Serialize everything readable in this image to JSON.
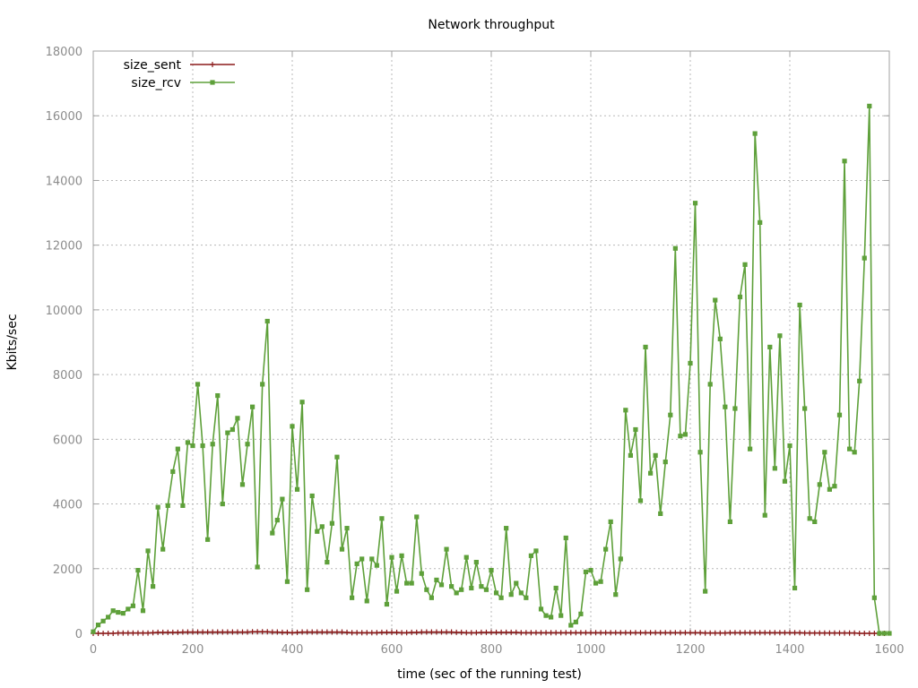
{
  "chart_data": {
    "type": "line",
    "title": "Network throughput",
    "xlabel": "time (sec of the running test)",
    "ylabel": "Kbits/sec",
    "xlim": [
      0,
      1600
    ],
    "ylim": [
      0,
      18000
    ],
    "x_ticks": [
      0,
      200,
      400,
      600,
      800,
      1000,
      1200,
      1400,
      1600
    ],
    "y_ticks": [
      0,
      2000,
      4000,
      6000,
      8000,
      10000,
      12000,
      14000,
      16000,
      18000
    ],
    "grid": true,
    "legend_position": "top-left",
    "series": [
      {
        "name": "size_sent",
        "color": "#8b1a1a",
        "marker": "plus",
        "points": [
          [
            0,
            0
          ],
          [
            10,
            0
          ],
          [
            20,
            0
          ],
          [
            30,
            0
          ],
          [
            40,
            0
          ],
          [
            50,
            10
          ],
          [
            60,
            10
          ],
          [
            70,
            10
          ],
          [
            80,
            10
          ],
          [
            90,
            10
          ],
          [
            100,
            10
          ],
          [
            110,
            10
          ],
          [
            120,
            20
          ],
          [
            130,
            30
          ],
          [
            140,
            30
          ],
          [
            150,
            30
          ],
          [
            160,
            30
          ],
          [
            170,
            30
          ],
          [
            180,
            40
          ],
          [
            190,
            40
          ],
          [
            200,
            40
          ],
          [
            210,
            40
          ],
          [
            220,
            40
          ],
          [
            230,
            40
          ],
          [
            240,
            40
          ],
          [
            250,
            40
          ],
          [
            260,
            40
          ],
          [
            270,
            40
          ],
          [
            280,
            40
          ],
          [
            290,
            40
          ],
          [
            300,
            40
          ],
          [
            310,
            40
          ],
          [
            320,
            50
          ],
          [
            330,
            50
          ],
          [
            340,
            50
          ],
          [
            350,
            50
          ],
          [
            360,
            40
          ],
          [
            370,
            40
          ],
          [
            380,
            30
          ],
          [
            390,
            30
          ],
          [
            400,
            20
          ],
          [
            410,
            30
          ],
          [
            420,
            40
          ],
          [
            430,
            40
          ],
          [
            440,
            40
          ],
          [
            450,
            40
          ],
          [
            460,
            40
          ],
          [
            470,
            40
          ],
          [
            480,
            40
          ],
          [
            490,
            40
          ],
          [
            500,
            40
          ],
          [
            510,
            30
          ],
          [
            520,
            20
          ],
          [
            530,
            20
          ],
          [
            540,
            20
          ],
          [
            550,
            20
          ],
          [
            560,
            20
          ],
          [
            570,
            20
          ],
          [
            580,
            30
          ],
          [
            590,
            30
          ],
          [
            600,
            30
          ],
          [
            610,
            30
          ],
          [
            620,
            20
          ],
          [
            630,
            20
          ],
          [
            640,
            30
          ],
          [
            650,
            30
          ],
          [
            660,
            40
          ],
          [
            670,
            40
          ],
          [
            680,
            40
          ],
          [
            690,
            40
          ],
          [
            700,
            40
          ],
          [
            710,
            40
          ],
          [
            720,
            40
          ],
          [
            730,
            30
          ],
          [
            740,
            30
          ],
          [
            750,
            20
          ],
          [
            760,
            20
          ],
          [
            770,
            20
          ],
          [
            780,
            30
          ],
          [
            790,
            30
          ],
          [
            800,
            30
          ],
          [
            810,
            30
          ],
          [
            820,
            30
          ],
          [
            830,
            30
          ],
          [
            840,
            30
          ],
          [
            850,
            30
          ],
          [
            860,
            20
          ],
          [
            870,
            20
          ],
          [
            880,
            20
          ],
          [
            890,
            20
          ],
          [
            900,
            20
          ],
          [
            910,
            20
          ],
          [
            920,
            20
          ],
          [
            930,
            20
          ],
          [
            940,
            20
          ],
          [
            950,
            20
          ],
          [
            960,
            20
          ],
          [
            970,
            20
          ],
          [
            980,
            20
          ],
          [
            990,
            20
          ],
          [
            1000,
            20
          ],
          [
            1010,
            20
          ],
          [
            1020,
            20
          ],
          [
            1030,
            20
          ],
          [
            1040,
            20
          ],
          [
            1050,
            20
          ],
          [
            1060,
            20
          ],
          [
            1070,
            20
          ],
          [
            1080,
            20
          ],
          [
            1090,
            20
          ],
          [
            1100,
            20
          ],
          [
            1110,
            20
          ],
          [
            1120,
            20
          ],
          [
            1130,
            20
          ],
          [
            1140,
            20
          ],
          [
            1150,
            20
          ],
          [
            1160,
            20
          ],
          [
            1170,
            20
          ],
          [
            1180,
            20
          ],
          [
            1190,
            20
          ],
          [
            1200,
            20
          ],
          [
            1210,
            20
          ],
          [
            1220,
            20
          ],
          [
            1230,
            10
          ],
          [
            1240,
            10
          ],
          [
            1250,
            10
          ],
          [
            1260,
            10
          ],
          [
            1270,
            10
          ],
          [
            1280,
            20
          ],
          [
            1290,
            20
          ],
          [
            1300,
            20
          ],
          [
            1310,
            20
          ],
          [
            1320,
            20
          ],
          [
            1330,
            20
          ],
          [
            1340,
            20
          ],
          [
            1350,
            20
          ],
          [
            1360,
            20
          ],
          [
            1370,
            20
          ],
          [
            1380,
            20
          ],
          [
            1390,
            20
          ],
          [
            1400,
            20
          ],
          [
            1410,
            20
          ],
          [
            1420,
            20
          ],
          [
            1430,
            10
          ],
          [
            1440,
            10
          ],
          [
            1450,
            10
          ],
          [
            1460,
            10
          ],
          [
            1470,
            10
          ],
          [
            1480,
            10
          ],
          [
            1490,
            10
          ],
          [
            1500,
            10
          ],
          [
            1510,
            10
          ],
          [
            1520,
            10
          ],
          [
            1530,
            10
          ],
          [
            1540,
            0
          ],
          [
            1550,
            0
          ],
          [
            1560,
            0
          ],
          [
            1570,
            0
          ],
          [
            1580,
            0
          ],
          [
            1590,
            0
          ]
        ]
      },
      {
        "name": "size_rcv",
        "color": "#5ea03a",
        "marker": "square",
        "points": [
          [
            0,
            50
          ],
          [
            10,
            260
          ],
          [
            20,
            380
          ],
          [
            30,
            500
          ],
          [
            40,
            700
          ],
          [
            50,
            650
          ],
          [
            60,
            620
          ],
          [
            70,
            750
          ],
          [
            80,
            850
          ],
          [
            90,
            1950
          ],
          [
            100,
            700
          ],
          [
            110,
            2550
          ],
          [
            120,
            1450
          ],
          [
            130,
            3900
          ],
          [
            140,
            2600
          ],
          [
            150,
            3950
          ],
          [
            160,
            5000
          ],
          [
            170,
            5700
          ],
          [
            180,
            3950
          ],
          [
            190,
            5900
          ],
          [
            200,
            5800
          ],
          [
            210,
            7700
          ],
          [
            220,
            5800
          ],
          [
            230,
            2900
          ],
          [
            240,
            5850
          ],
          [
            250,
            7350
          ],
          [
            260,
            4000
          ],
          [
            270,
            6200
          ],
          [
            280,
            6300
          ],
          [
            290,
            6650
          ],
          [
            300,
            4600
          ],
          [
            310,
            5850
          ],
          [
            320,
            7000
          ],
          [
            330,
            2050
          ],
          [
            340,
            7700
          ],
          [
            350,
            9650
          ],
          [
            360,
            3100
          ],
          [
            370,
            3500
          ],
          [
            380,
            4150
          ],
          [
            390,
            1600
          ],
          [
            400,
            6400
          ],
          [
            410,
            4450
          ],
          [
            420,
            7150
          ],
          [
            430,
            1350
          ],
          [
            440,
            4250
          ],
          [
            450,
            3150
          ],
          [
            460,
            3300
          ],
          [
            470,
            2200
          ],
          [
            480,
            3400
          ],
          [
            490,
            5450
          ],
          [
            500,
            2600
          ],
          [
            510,
            3250
          ],
          [
            520,
            1100
          ],
          [
            530,
            2150
          ],
          [
            540,
            2300
          ],
          [
            550,
            1000
          ],
          [
            560,
            2300
          ],
          [
            570,
            2100
          ],
          [
            580,
            3550
          ],
          [
            590,
            900
          ],
          [
            600,
            2350
          ],
          [
            610,
            1300
          ],
          [
            620,
            2400
          ],
          [
            630,
            1550
          ],
          [
            640,
            1550
          ],
          [
            650,
            3600
          ],
          [
            660,
            1850
          ],
          [
            670,
            1350
          ],
          [
            680,
            1100
          ],
          [
            690,
            1650
          ],
          [
            700,
            1500
          ],
          [
            710,
            2600
          ],
          [
            720,
            1450
          ],
          [
            730,
            1250
          ],
          [
            740,
            1350
          ],
          [
            750,
            2350
          ],
          [
            760,
            1400
          ],
          [
            770,
            2200
          ],
          [
            780,
            1450
          ],
          [
            790,
            1350
          ],
          [
            800,
            1950
          ],
          [
            810,
            1250
          ],
          [
            820,
            1100
          ],
          [
            830,
            3250
          ],
          [
            840,
            1200
          ],
          [
            850,
            1550
          ],
          [
            860,
            1250
          ],
          [
            870,
            1100
          ],
          [
            880,
            2400
          ],
          [
            890,
            2550
          ],
          [
            900,
            750
          ],
          [
            910,
            550
          ],
          [
            920,
            500
          ],
          [
            930,
            1400
          ],
          [
            940,
            550
          ],
          [
            950,
            2950
          ],
          [
            960,
            250
          ],
          [
            970,
            350
          ],
          [
            980,
            600
          ],
          [
            990,
            1900
          ],
          [
            1000,
            1950
          ],
          [
            1010,
            1550
          ],
          [
            1020,
            1600
          ],
          [
            1030,
            2600
          ],
          [
            1040,
            3450
          ],
          [
            1050,
            1200
          ],
          [
            1060,
            2300
          ],
          [
            1070,
            6900
          ],
          [
            1080,
            5500
          ],
          [
            1090,
            6300
          ],
          [
            1100,
            4100
          ],
          [
            1110,
            8850
          ],
          [
            1120,
            4950
          ],
          [
            1130,
            5500
          ],
          [
            1140,
            3700
          ],
          [
            1150,
            5300
          ],
          [
            1160,
            6750
          ],
          [
            1170,
            11900
          ],
          [
            1180,
            6100
          ],
          [
            1190,
            6150
          ],
          [
            1200,
            8350
          ],
          [
            1210,
            13300
          ],
          [
            1220,
            5600
          ],
          [
            1230,
            1300
          ],
          [
            1240,
            7700
          ],
          [
            1250,
            10300
          ],
          [
            1260,
            9100
          ],
          [
            1270,
            7000
          ],
          [
            1280,
            3450
          ],
          [
            1290,
            6950
          ],
          [
            1300,
            10400
          ],
          [
            1310,
            11400
          ],
          [
            1320,
            5700
          ],
          [
            1330,
            15450
          ],
          [
            1340,
            12700
          ],
          [
            1350,
            3650
          ],
          [
            1360,
            8850
          ],
          [
            1370,
            5100
          ],
          [
            1380,
            9200
          ],
          [
            1390,
            4700
          ],
          [
            1400,
            5800
          ],
          [
            1410,
            1400
          ],
          [
            1420,
            10150
          ],
          [
            1430,
            6950
          ],
          [
            1440,
            3550
          ],
          [
            1450,
            3450
          ],
          [
            1460,
            4600
          ],
          [
            1470,
            5600
          ],
          [
            1480,
            4450
          ],
          [
            1490,
            4550
          ],
          [
            1500,
            6750
          ],
          [
            1510,
            14600
          ],
          [
            1520,
            5700
          ],
          [
            1530,
            5600
          ],
          [
            1540,
            7800
          ],
          [
            1550,
            11600
          ],
          [
            1560,
            16300
          ],
          [
            1570,
            1100
          ],
          [
            1580,
            0
          ],
          [
            1590,
            0
          ],
          [
            1600,
            0
          ]
        ]
      }
    ]
  }
}
